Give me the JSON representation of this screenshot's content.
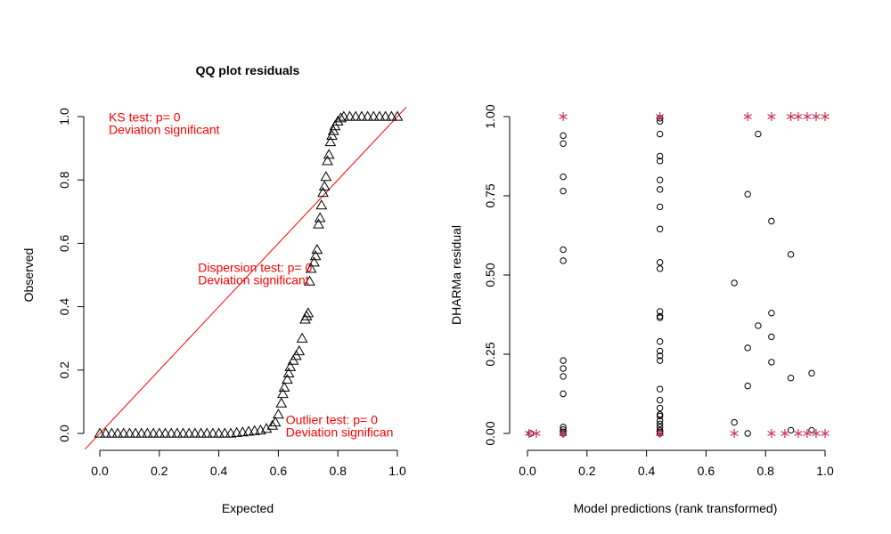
{
  "chart_data": [
    {
      "type": "scatter",
      "title": "QQ plot residuals",
      "xlabel": "Expected",
      "ylabel": "Observed",
      "xlim": [
        0,
        1
      ],
      "ylim": [
        0,
        1
      ],
      "x_ticks": [
        "0.0",
        "0.2",
        "0.4",
        "0.6",
        "0.8",
        "1.0"
      ],
      "y_ticks": [
        "0.0",
        "0.2",
        "0.4",
        "0.6",
        "0.8",
        "1.0"
      ],
      "reference_line": {
        "from": [
          0,
          0
        ],
        "to": [
          1,
          1
        ],
        "color": "#ff0000"
      },
      "marker": "triangle",
      "points": [
        [
          0.0,
          0.0
        ],
        [
          0.02,
          0.0
        ],
        [
          0.04,
          0.0
        ],
        [
          0.06,
          0.0
        ],
        [
          0.08,
          0.0
        ],
        [
          0.1,
          0.0
        ],
        [
          0.12,
          0.0
        ],
        [
          0.14,
          0.0
        ],
        [
          0.16,
          0.0
        ],
        [
          0.18,
          0.0
        ],
        [
          0.2,
          0.0
        ],
        [
          0.22,
          0.0
        ],
        [
          0.24,
          0.0
        ],
        [
          0.26,
          0.0
        ],
        [
          0.28,
          0.0
        ],
        [
          0.3,
          0.0
        ],
        [
          0.32,
          0.0
        ],
        [
          0.34,
          0.0
        ],
        [
          0.36,
          0.0
        ],
        [
          0.38,
          0.0
        ],
        [
          0.4,
          0.0
        ],
        [
          0.42,
          0.0
        ],
        [
          0.44,
          0.0
        ],
        [
          0.46,
          0.002
        ],
        [
          0.48,
          0.004
        ],
        [
          0.5,
          0.006
        ],
        [
          0.52,
          0.008
        ],
        [
          0.54,
          0.01
        ],
        [
          0.56,
          0.015
        ],
        [
          0.58,
          0.025
        ],
        [
          0.59,
          0.035
        ],
        [
          0.6,
          0.06
        ],
        [
          0.61,
          0.095
        ],
        [
          0.615,
          0.125
        ],
        [
          0.62,
          0.145
        ],
        [
          0.63,
          0.17
        ],
        [
          0.635,
          0.19
        ],
        [
          0.64,
          0.21
        ],
        [
          0.65,
          0.23
        ],
        [
          0.66,
          0.245
        ],
        [
          0.67,
          0.26
        ],
        [
          0.68,
          0.3
        ],
        [
          0.69,
          0.36
        ],
        [
          0.695,
          0.37
        ],
        [
          0.7,
          0.38
        ],
        [
          0.705,
          0.48
        ],
        [
          0.71,
          0.52
        ],
        [
          0.72,
          0.54
        ],
        [
          0.725,
          0.56
        ],
        [
          0.73,
          0.58
        ],
        [
          0.735,
          0.66
        ],
        [
          0.74,
          0.68
        ],
        [
          0.745,
          0.72
        ],
        [
          0.75,
          0.76
        ],
        [
          0.755,
          0.78
        ],
        [
          0.76,
          0.81
        ],
        [
          0.765,
          0.86
        ],
        [
          0.77,
          0.88
        ],
        [
          0.775,
          0.92
        ],
        [
          0.78,
          0.94
        ],
        [
          0.785,
          0.955
        ],
        [
          0.79,
          0.97
        ],
        [
          0.8,
          0.985
        ],
        [
          0.81,
          0.995
        ],
        [
          0.82,
          1.0
        ],
        [
          0.84,
          1.0
        ],
        [
          0.86,
          1.0
        ],
        [
          0.88,
          1.0
        ],
        [
          0.9,
          1.0
        ],
        [
          0.92,
          1.0
        ],
        [
          0.94,
          1.0
        ],
        [
          0.96,
          1.0
        ],
        [
          0.98,
          1.0
        ],
        [
          1.0,
          1.0
        ]
      ],
      "annotations": [
        {
          "lines": [
            "KS test: p= 0",
            "Deviation  significant"
          ],
          "color": "#ff0000",
          "anchor": [
            0.03,
            0.985
          ]
        },
        {
          "lines": [
            "Dispersion test: p= 0",
            "Deviation  significant"
          ],
          "color": "#ff0000",
          "anchor": [
            0.33,
            0.51
          ]
        },
        {
          "lines": [
            "Outlier test: p= 0",
            "Deviation  significan"
          ],
          "color": "#ff0000",
          "anchor": [
            0.625,
            0.03
          ]
        }
      ]
    },
    {
      "type": "scatter",
      "title": "",
      "xlabel": "Model predictions (rank transformed)",
      "ylabel": "DHARMa residual",
      "xlim": [
        0,
        1
      ],
      "ylim": [
        0,
        1
      ],
      "x_ticks": [
        "0.0",
        "0.2",
        "0.4",
        "0.6",
        "0.8",
        "1.0"
      ],
      "y_ticks": [
        "0.00",
        "0.25",
        "0.50",
        "0.75",
        "1.00"
      ],
      "outlier_color": "#cc3355",
      "circles": [
        [
          0.01,
          0.0
        ],
        [
          0.12,
          0.0
        ],
        [
          0.12,
          0.005
        ],
        [
          0.12,
          0.012
        ],
        [
          0.12,
          0.02
        ],
        [
          0.12,
          0.125
        ],
        [
          0.12,
          0.18
        ],
        [
          0.12,
          0.205
        ],
        [
          0.12,
          0.23
        ],
        [
          0.12,
          0.545
        ],
        [
          0.12,
          0.58
        ],
        [
          0.12,
          0.765
        ],
        [
          0.12,
          0.81
        ],
        [
          0.12,
          0.915
        ],
        [
          0.12,
          0.94
        ],
        [
          0.445,
          0.0
        ],
        [
          0.445,
          0.005
        ],
        [
          0.445,
          0.01
        ],
        [
          0.445,
          0.02
        ],
        [
          0.445,
          0.03
        ],
        [
          0.445,
          0.04
        ],
        [
          0.445,
          0.055
        ],
        [
          0.445,
          0.06
        ],
        [
          0.445,
          0.08
        ],
        [
          0.445,
          0.105
        ],
        [
          0.445,
          0.14
        ],
        [
          0.445,
          0.23
        ],
        [
          0.445,
          0.245
        ],
        [
          0.445,
          0.26
        ],
        [
          0.445,
          0.29
        ],
        [
          0.445,
          0.365
        ],
        [
          0.445,
          0.37
        ],
        [
          0.445,
          0.385
        ],
        [
          0.445,
          0.52
        ],
        [
          0.445,
          0.54
        ],
        [
          0.445,
          0.645
        ],
        [
          0.445,
          0.715
        ],
        [
          0.445,
          0.77
        ],
        [
          0.445,
          0.8
        ],
        [
          0.445,
          0.86
        ],
        [
          0.445,
          0.875
        ],
        [
          0.445,
          0.945
        ],
        [
          0.445,
          0.985
        ],
        [
          0.445,
          0.995
        ],
        [
          0.695,
          0.475
        ],
        [
          0.695,
          0.035
        ],
        [
          0.74,
          0.0
        ],
        [
          0.74,
          0.15
        ],
        [
          0.74,
          0.27
        ],
        [
          0.74,
          0.755
        ],
        [
          0.775,
          0.34
        ],
        [
          0.775,
          0.945
        ],
        [
          0.82,
          0.225
        ],
        [
          0.82,
          0.305
        ],
        [
          0.82,
          0.38
        ],
        [
          0.82,
          0.67
        ],
        [
          0.885,
          0.01
        ],
        [
          0.885,
          0.175
        ],
        [
          0.885,
          0.565
        ],
        [
          0.955,
          0.01
        ],
        [
          0.955,
          0.19
        ]
      ],
      "outliers": [
        [
          0.005,
          0.0
        ],
        [
          0.03,
          0.0
        ],
        [
          0.12,
          0.0
        ],
        [
          0.12,
          1.0
        ],
        [
          0.445,
          0.0
        ],
        [
          0.445,
          1.0
        ],
        [
          0.695,
          0.0
        ],
        [
          0.74,
          1.0
        ],
        [
          0.82,
          0.0
        ],
        [
          0.82,
          1.0
        ],
        [
          0.865,
          0.0
        ],
        [
          0.885,
          1.0
        ],
        [
          0.91,
          0.0
        ],
        [
          0.91,
          1.0
        ],
        [
          0.94,
          0.0
        ],
        [
          0.94,
          1.0
        ],
        [
          0.97,
          0.0
        ],
        [
          0.97,
          1.0
        ],
        [
          1.0,
          0.0
        ],
        [
          1.0,
          1.0
        ]
      ]
    }
  ]
}
